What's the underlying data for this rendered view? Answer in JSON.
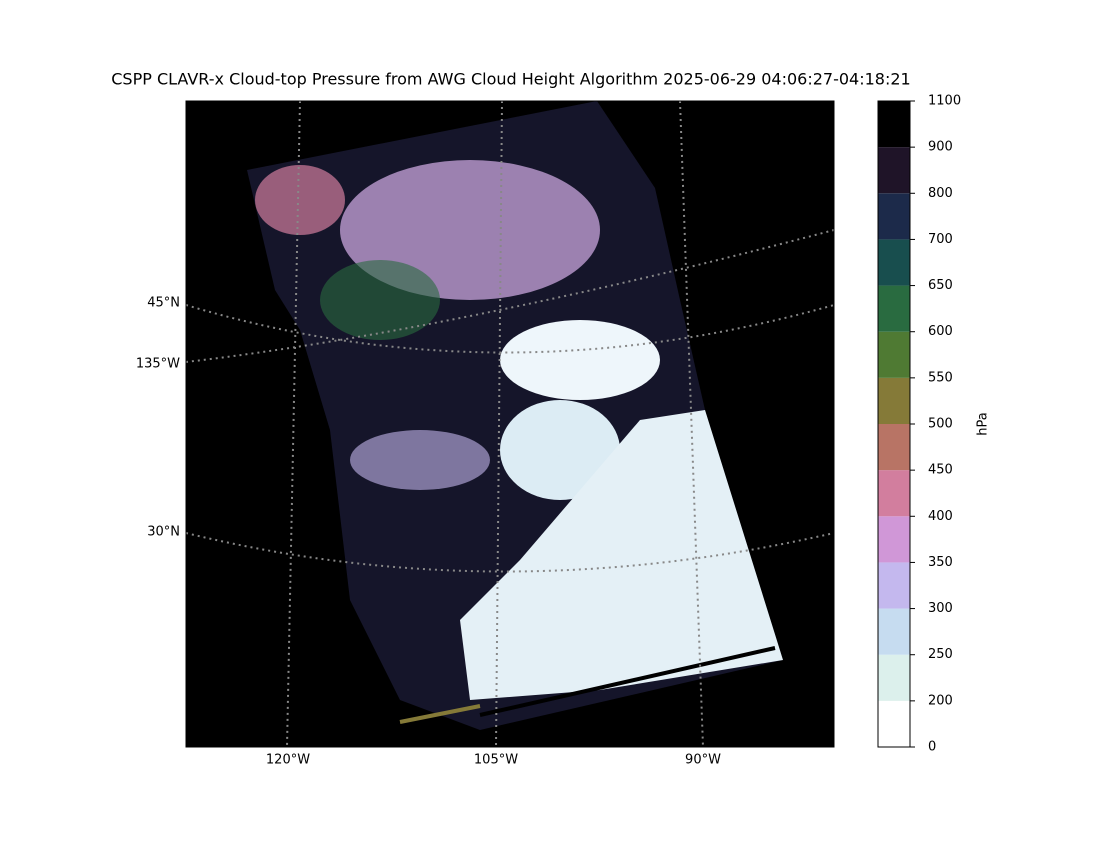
{
  "title": "CSPP CLAVR-x Cloud-top Pressure from AWG Cloud Height Algorithm 2025-06-29 04:06:27-04:18:21",
  "map": {
    "lat_labels": [
      "45°N",
      "135°W",
      "30°N"
    ],
    "lon_labels": [
      "120°W",
      "105°W",
      "90°W"
    ]
  },
  "colorbar": {
    "label": "hPa",
    "boundaries": [
      0,
      200,
      250,
      300,
      350,
      400,
      450,
      500,
      550,
      600,
      650,
      700,
      800,
      900,
      1100
    ],
    "colors": [
      "#ffffff",
      "#dcf0ec",
      "#c6dcf0",
      "#c4b8ee",
      "#d097d7",
      "#d27e9e",
      "#b87465",
      "#857a38",
      "#4f7a33",
      "#296b40",
      "#184e4e",
      "#1c2a4a",
      "#1f1428",
      "#000000"
    ]
  }
}
